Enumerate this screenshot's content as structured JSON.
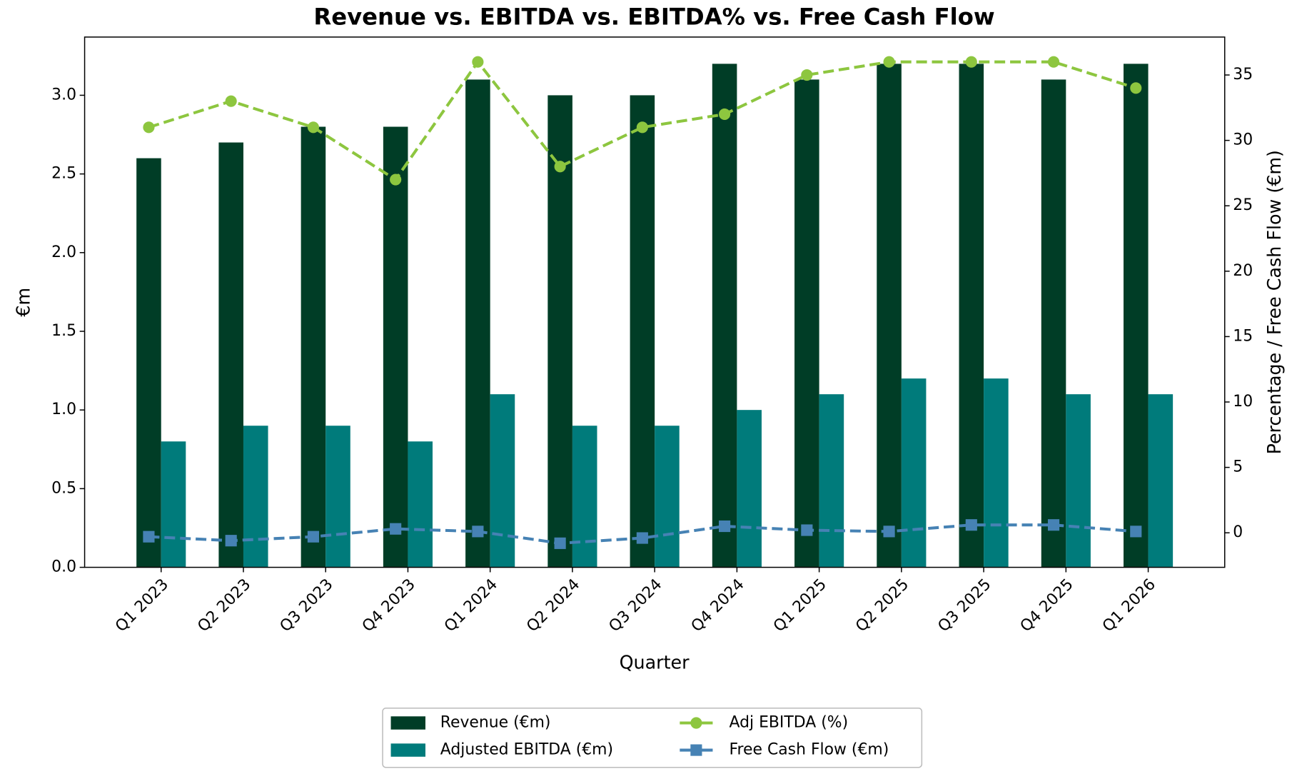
{
  "chart_data": {
    "type": "bar",
    "title": "Revenue vs. EBITDA vs. EBITDA% vs. Free Cash Flow",
    "x_label": "Quarter",
    "y_label": "€m",
    "y2_label": "Percentage / Free Cash Flow (€m)",
    "categories": [
      "Q1 2023",
      "Q2 2023",
      "Q3 2023",
      "Q4 2023",
      "Q1 2024",
      "Q2 2024",
      "Q3 2024",
      "Q4 2024",
      "Q1 2025",
      "Q2 2025",
      "Q3 2025",
      "Q4 2025",
      "Q1 2026"
    ],
    "series": [
      {
        "name": "Revenue (€m)",
        "type": "bar",
        "color": "#003d26",
        "values": [
          2.6,
          2.7,
          2.8,
          2.8,
          3.1,
          3.0,
          3.0,
          3.2,
          3.1,
          3.2,
          3.2,
          3.1,
          3.2
        ]
      },
      {
        "name": "Adjusted EBITDA (€m)",
        "type": "bar",
        "color": "#007b7b",
        "values": [
          0.8,
          0.9,
          0.9,
          0.8,
          1.1,
          0.9,
          0.9,
          1.0,
          1.1,
          1.2,
          1.2,
          1.1,
          1.1
        ]
      },
      {
        "name": "Adj EBITDA (%)",
        "type": "line",
        "axis": "y2",
        "marker": "circle",
        "color": "#8dc63f",
        "values": [
          31,
          33,
          31,
          27,
          36,
          28,
          31,
          32,
          35,
          36,
          36,
          36,
          34
        ]
      },
      {
        "name": "Free Cash Flow (€m)",
        "type": "line",
        "axis": "y2",
        "marker": "square",
        "color": "#4682b4",
        "values": [
          -0.3,
          -0.6,
          -0.3,
          0.3,
          0.1,
          -0.8,
          -0.4,
          0.5,
          0.2,
          0.1,
          0.6,
          0.6,
          0.1
        ]
      }
    ],
    "ylim": [
      0,
      3.37
    ],
    "yticks": [
      {
        "value": 0,
        "label": "0.0"
      },
      {
        "value": 0.5,
        "label": "0.5"
      },
      {
        "value": 1,
        "label": "1.0"
      },
      {
        "value": 1.5,
        "label": "1.5"
      },
      {
        "value": 2,
        "label": "2.0"
      },
      {
        "value": 2.5,
        "label": "2.5"
      },
      {
        "value": 3,
        "label": "3.0"
      }
    ],
    "y2lim": [
      -2.64,
      37.9
    ],
    "y2ticks": [
      0,
      5,
      10,
      15,
      20,
      25,
      30,
      35
    ],
    "grid": false,
    "legend": "lower center"
  }
}
